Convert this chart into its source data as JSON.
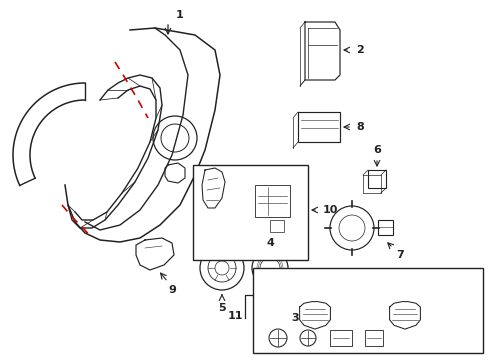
{
  "bg_color": "#ffffff",
  "lc": "#222222",
  "rc": "#cc0000",
  "figsize": [
    4.89,
    3.6
  ],
  "dpi": 100,
  "xlim": [
    0,
    489
  ],
  "ylim": [
    0,
    360
  ]
}
